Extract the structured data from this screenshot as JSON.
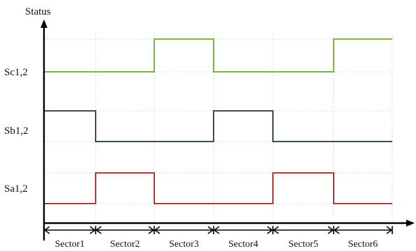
{
  "axis_title": "Status",
  "signals": [
    {
      "label": "Sc1,2",
      "color": "#7cb342",
      "levels": [
        0,
        0,
        1,
        0,
        0,
        1
      ]
    },
    {
      "label": "Sb1,2",
      "color": "#3b4f4f",
      "levels": [
        1,
        0,
        0,
        1,
        0,
        0
      ]
    },
    {
      "label": "Sa1,2",
      "color": "#b03a3a",
      "levels": [
        0,
        1,
        0,
        0,
        1,
        0
      ]
    }
  ],
  "sectors": [
    "Sector1",
    "Sector2",
    "Sector3",
    "Sector4",
    "Sector5",
    "Sector6"
  ]
}
